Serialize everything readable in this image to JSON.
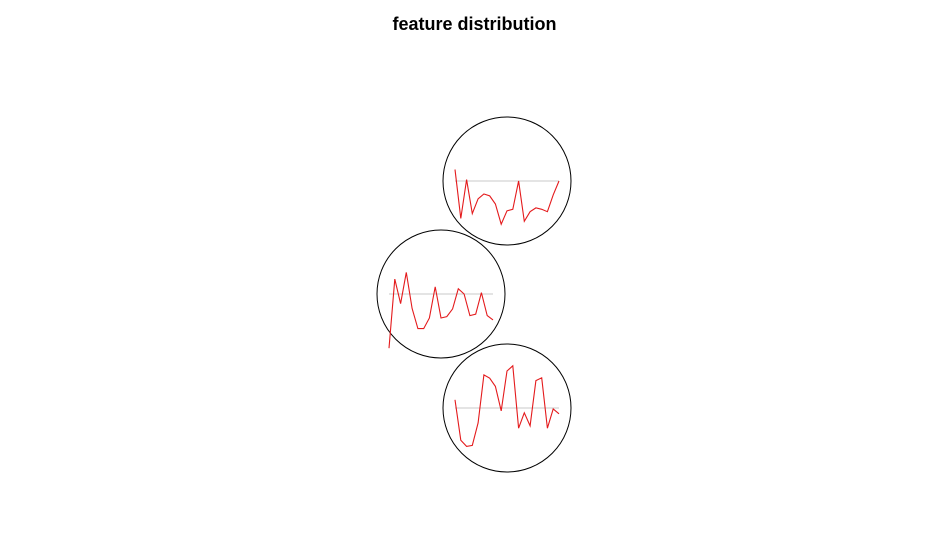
{
  "chart_data": {
    "type": "line",
    "title": "feature distribution",
    "xlabel": "",
    "ylabel": "",
    "glyph_style": "circular line glyphs (stars plot, draw.segments off)",
    "colors": {
      "line": "#e41a1c",
      "circle": "#000000",
      "baseline": "#c8c8c8"
    },
    "glyphs": [
      {
        "id": "glyph-1",
        "baseline": 0,
        "range": [
          -1,
          1
        ],
        "values": [
          0.24,
          -0.78,
          0.03,
          -0.68,
          -0.37,
          -0.27,
          -0.31,
          -0.48,
          -0.9,
          -0.62,
          -0.59,
          0.0,
          -0.84,
          -0.64,
          -0.56,
          -0.59,
          -0.64,
          -0.29,
          0.0
        ]
      },
      {
        "id": "glyph-2",
        "baseline": 0,
        "range": [
          -1,
          1
        ],
        "values": [
          -1.13,
          0.31,
          -0.2,
          0.45,
          -0.3,
          -0.72,
          -0.72,
          -0.5,
          0.15,
          -0.5,
          -0.47,
          -0.31,
          0.11,
          0.0,
          -0.45,
          -0.42,
          0.03,
          -0.45,
          -0.54
        ]
      },
      {
        "id": "glyph-3",
        "baseline": 0,
        "range": [
          -1,
          1
        ],
        "values": [
          0.17,
          -0.67,
          -0.8,
          -0.78,
          -0.31,
          0.69,
          0.62,
          0.45,
          -0.06,
          0.77,
          0.88,
          -0.42,
          -0.1,
          -0.37,
          0.57,
          0.63,
          -0.42,
          -0.02,
          -0.12
        ]
      }
    ]
  }
}
